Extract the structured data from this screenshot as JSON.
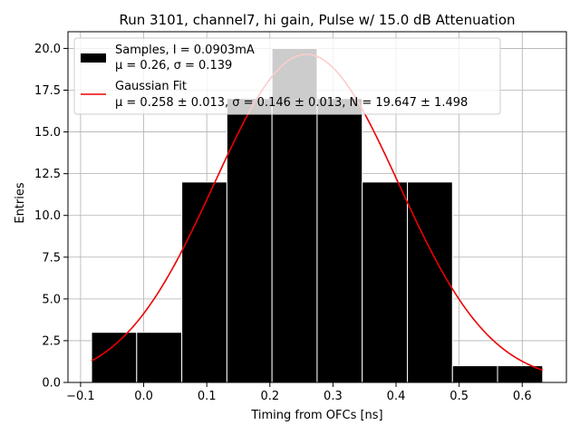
{
  "chart_data": {
    "type": "bar",
    "title": "Run 3101, channel7, hi gain, Pulse w/ 15.0 dB Attenuation",
    "xlabel": "Timing from OFCs [ns]",
    "ylabel": "Entries",
    "xlim": [
      -0.12,
      0.67
    ],
    "ylim": [
      0,
      21
    ],
    "xticks": [
      -0.1,
      0.0,
      0.1,
      0.2,
      0.3,
      0.4,
      0.5,
      0.6
    ],
    "xtick_labels": [
      "−0.1",
      "0.0",
      "0.1",
      "0.2",
      "0.3",
      "0.4",
      "0.5",
      "0.6"
    ],
    "yticks": [
      0.0,
      2.5,
      5.0,
      7.5,
      10.0,
      12.5,
      15.0,
      17.5,
      20.0
    ],
    "ytick_labels": [
      "0.0",
      "2.5",
      "5.0",
      "7.5",
      "10.0",
      "12.5",
      "15.0",
      "17.5",
      "20.0"
    ],
    "grid": true,
    "legend_position": "top-left",
    "histogram": {
      "name": "Samples, I = 0.0903mA",
      "stats": "μ = 0.26, σ = 0.139",
      "color": "#000000",
      "edge_color": "#ffffff",
      "bins": [
        {
          "x0": -0.0826,
          "x1": -0.0111,
          "count": 3
        },
        {
          "x0": -0.0111,
          "x1": 0.0604,
          "count": 3
        },
        {
          "x0": 0.0604,
          "x1": 0.1319,
          "count": 12
        },
        {
          "x0": 0.1319,
          "x1": 0.2034,
          "count": 17
        },
        {
          "x0": 0.2034,
          "x1": 0.2749,
          "count": 20
        },
        {
          "x0": 0.2749,
          "x1": 0.3464,
          "count": 17
        },
        {
          "x0": 0.3464,
          "x1": 0.4179,
          "count": 12
        },
        {
          "x0": 0.4179,
          "x1": 0.4894,
          "count": 12
        },
        {
          "x0": 0.4894,
          "x1": 0.5609,
          "count": 1
        },
        {
          "x0": 0.5609,
          "x1": 0.6324,
          "count": 1
        }
      ]
    },
    "fit": {
      "name": "Gaussian Fit",
      "params": "μ = 0.258 ± 0.013, σ = 0.146 ± 0.013, N = 19.647 ± 1.498",
      "mu": 0.258,
      "sigma": 0.146,
      "N": 19.647,
      "x_range": [
        -0.0826,
        0.6324
      ],
      "color": "#ee0000"
    }
  }
}
